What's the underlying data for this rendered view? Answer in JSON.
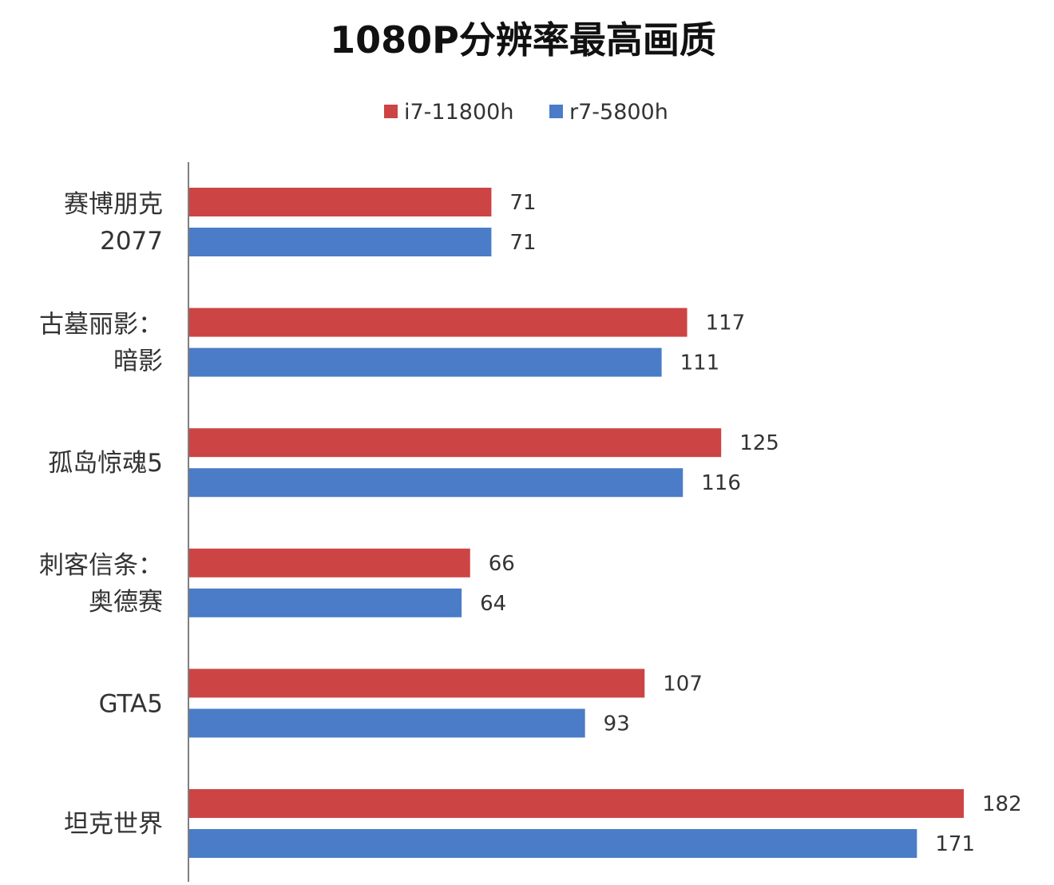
{
  "chart_data": {
    "type": "bar",
    "orientation": "horizontal",
    "title": "1080P分辨率最高画质",
    "categories": [
      [
        "赛博朋克",
        "2077"
      ],
      [
        "古墓丽影：",
        "暗影"
      ],
      [
        "孤岛惊魂5"
      ],
      [
        "刺客信条：",
        "奥德赛"
      ],
      [
        "GTA5"
      ],
      [
        "坦克世界"
      ]
    ],
    "series": [
      {
        "name": "i7-11800h",
        "color": "#cd4444",
        "values": [
          71,
          117,
          125,
          66,
          107,
          182
        ]
      },
      {
        "name": "r7-5800h",
        "color": "#4a7cc7",
        "values": [
          71,
          111,
          116,
          64,
          93,
          171
        ]
      }
    ],
    "xlim": [
      0,
      195
    ],
    "legend_position": "top",
    "grid": false,
    "xlabel": "",
    "ylabel": ""
  }
}
